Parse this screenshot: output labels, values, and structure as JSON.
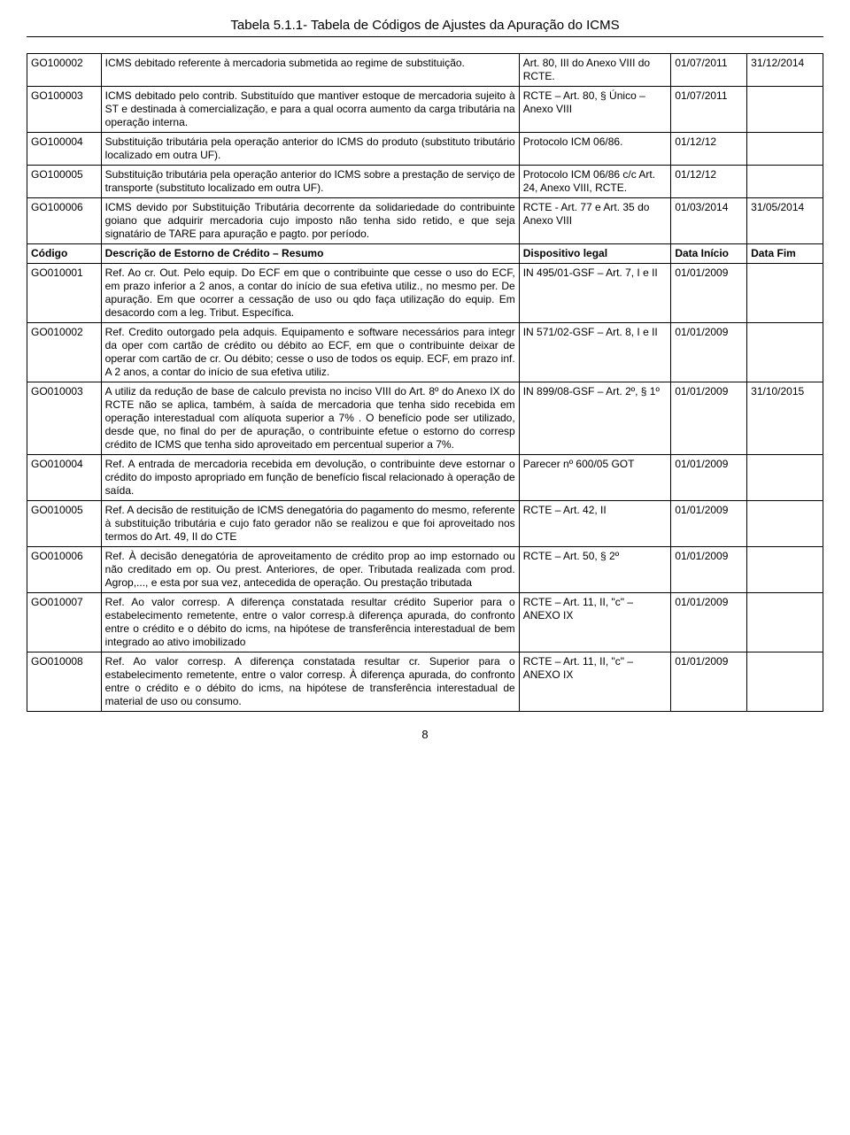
{
  "title": "Tabela 5.1.1- Tabela de Códigos de Ajustes da Apuração do ICMS",
  "pageNumber": "8",
  "headerRow": {
    "code": "Código",
    "desc": "Descrição de Estorno de Crédito – Resumo",
    "disp": "Dispositivo legal",
    "start": "Data Início",
    "end": "Data Fim"
  },
  "rowsA": [
    {
      "code": "GO100002",
      "desc": "ICMS debitado referente à mercadoria submetida ao regime de substituição.",
      "disp": "Art. 80, III do Anexo VIII do RCTE.",
      "start": "01/07/2011",
      "end": "31/12/2014"
    },
    {
      "code": "GO100003",
      "desc": "ICMS debitado pelo contrib. Substituído que mantiver estoque de mercadoria sujeito à ST e destinada à comercialização, e para a qual ocorra aumento da carga tributária na operação interna.",
      "disp": "RCTE – Art. 80, § Único – Anexo VIII",
      "start": "01/07/2011",
      "end": ""
    },
    {
      "code": "GO100004",
      "desc": "Substituição tributária pela operação anterior do ICMS do produto (substituto tributário localizado em outra UF).",
      "disp": "Protocolo ICM 06/86.",
      "start": "01/12/12",
      "end": ""
    },
    {
      "code": "GO100005",
      "desc": "Substituição tributária pela operação anterior do ICMS sobre a prestação de serviço de transporte (substituto localizado em outra UF).",
      "disp": "Protocolo ICM 06/86 c/c Art. 24, Anexo VIII, RCTE.",
      "start": "01/12/12",
      "end": ""
    },
    {
      "code": "GO100006",
      "desc": "ICMS devido por Substituição Tributária decorrente da solidariedade do contribuinte goiano que adquirir mercadoria cujo imposto não tenha sido retido, e que seja signatário de TARE para apuração e pagto. por período.",
      "disp": "RCTE - Art. 77 e Art. 35 do Anexo VIII",
      "start": "01/03/2014",
      "end": "31/05/2014"
    }
  ],
  "rowsB": [
    {
      "code": "GO010001",
      "desc": "Ref. Ao cr. Out. Pelo equip. Do ECF em que o contribuinte que cesse o uso do ECF, em prazo inferior a 2 anos, a contar do início de sua efetiva utiliz., no mesmo per. De apuração. Em que ocorrer a cessação de uso ou qdo faça utilização do equip. Em desacordo com a leg. Tribut. Específica.",
      "disp": "IN 495/01-GSF – Art. 7, I e II",
      "start": "01/01/2009",
      "end": ""
    },
    {
      "code": "GO010002",
      "desc": "Ref. Credito outorgado pela adquis. Equipamento e software necessários para integr da oper com cartão de crédito ou débito ao ECF, em que o contribuinte deixar de operar com cartão de cr. Ou débito; cesse o uso de todos os equip. ECF, em prazo inf. A 2 anos, a contar do início de sua efetiva utiliz.",
      "disp": "IN 571/02-GSF – Art. 8, I e II",
      "start": "01/01/2009",
      "end": ""
    },
    {
      "code": "GO010003",
      "desc": "A utiliz da redução de base de calculo prevista no inciso VIII do Art. 8º do Anexo IX do RCTE não se aplica, também, à saída de mercadoria que tenha sido recebida em operação interestadual com alíquota superior a 7% . O benefício pode ser utilizado, desde que, no final do per de apuração, o contribuinte efetue o estorno do corresp crédito de ICMS que tenha sido aproveitado em percentual superior a 7%.",
      "disp": "IN 899/08-GSF – Art. 2º, § 1º",
      "start": "01/01/2009",
      "end": "31/10/2015"
    },
    {
      "code": "GO010004",
      "desc": "Ref. A entrada de mercadoria recebida em devolução, o contribuinte deve estornar o crédito do imposto apropriado em função de benefício fiscal relacionado à operação de saída.",
      "disp": "Parecer nº 600/05 GOT",
      "start": "01/01/2009",
      "end": ""
    },
    {
      "code": "GO010005",
      "desc": "Ref. A decisão de restituição de  ICMS denegatória do pagamento do mesmo, referente  à substituição tributária e cujo fato gerador não se realizou e que foi aproveitado nos termos do Art.  49, II do CTE",
      "disp": "RCTE – Art.  42, II",
      "start": "01/01/2009",
      "end": ""
    },
    {
      "code": "GO010006",
      "desc": "Ref. À decisão denegatória de aproveitamento de crédito prop ao imp estornado ou não creditado em op. Ou prest. Anteriores, de oper. Tributada realizada com prod. Agrop,..., e esta por sua vez, antecedida de operação. Ou prestação tributada",
      "disp": "RCTE – Art.  50, § 2º",
      "start": "01/01/2009",
      "end": ""
    },
    {
      "code": "GO010007",
      "desc": "Ref. Ao valor corresp. A diferença constatada resultar crédito Superior para o estabelecimento remetente, entre o valor corresp.à diferença apurada, do confronto entre o crédito e o débito do icms, na hipótese de transferência interestadual de bem integrado ao ativo imobilizado",
      "disp": "RCTE – Art. 11, II, \"c\" – ANEXO IX",
      "start": "01/01/2009",
      "end": ""
    },
    {
      "code": "GO010008",
      "desc": "Ref. Ao valor corresp. A diferença constatada resultar cr. Superior para o estabelecimento remetente, entre o valor corresp. À diferença apurada, do confronto entre o crédito e o débito do icms, na hipótese de transferência interestadual de material de uso ou consumo.",
      "disp": "RCTE – Art. 11, II, \"c\" – ANEXO IX",
      "start": "01/01/2009",
      "end": ""
    }
  ]
}
